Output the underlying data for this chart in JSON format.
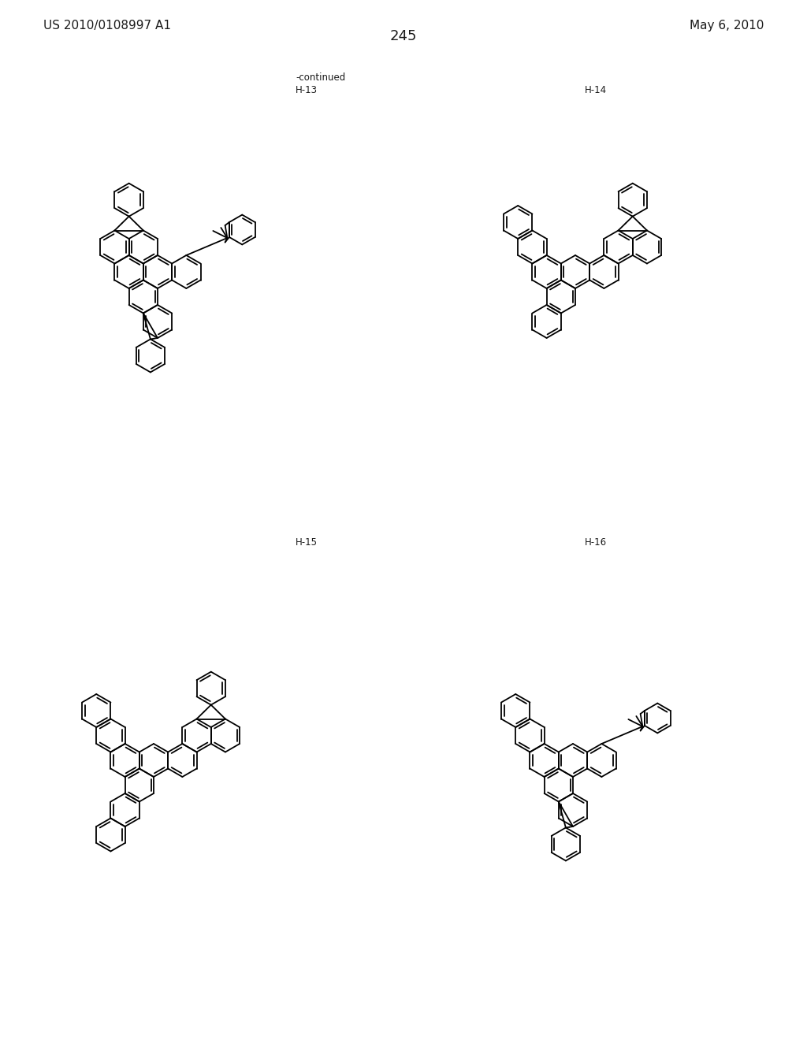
{
  "header_left": "US 2010/0108997 A1",
  "header_right": "May 6, 2010",
  "page_number": "245",
  "continued": "-continued",
  "labels": [
    "H-13",
    "H-14",
    "H-15",
    "H-16"
  ],
  "bg": "#ffffff",
  "lc": "#1a1a1a",
  "lw": 1.3,
  "r": 21
}
